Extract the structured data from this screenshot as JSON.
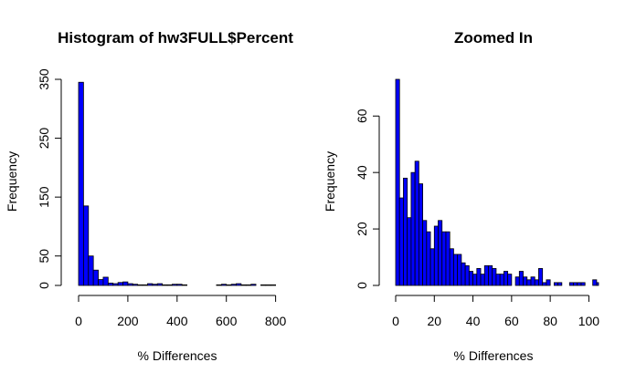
{
  "chart_data": [
    {
      "type": "bar",
      "title": "Histogram of hw3FULL$Percent",
      "xlabel": "% Differences",
      "ylabel": "Frequency",
      "xlim": [
        0,
        820
      ],
      "ylim": [
        0,
        350
      ],
      "xticks": [
        0,
        200,
        400,
        600,
        800
      ],
      "yticks": [
        0,
        50,
        150,
        250,
        350
      ],
      "bin_width": 20,
      "bin_start": 0,
      "values": [
        345,
        135,
        50,
        26,
        10,
        14,
        4,
        3,
        5,
        6,
        3,
        2,
        1,
        1,
        3,
        2,
        3,
        1,
        1,
        2,
        2,
        1,
        0,
        0,
        0,
        0,
        0,
        0,
        1,
        2,
        1,
        2,
        3,
        1,
        1,
        2,
        0,
        1,
        1,
        1
      ],
      "fill": "#0000ff"
    },
    {
      "type": "bar",
      "title": "Zoomed In",
      "xlabel": "% Differences",
      "ylabel": "Frequency",
      "xlim": [
        0,
        105
      ],
      "ylim": [
        0,
        73
      ],
      "xticks": [
        0,
        20,
        40,
        60,
        80,
        100
      ],
      "yticks": [
        0,
        20,
        40,
        60
      ],
      "bin_width": 2,
      "bin_start": 0,
      "values": [
        73,
        31,
        38,
        24,
        40,
        44,
        36,
        23,
        19,
        13,
        21,
        23,
        19,
        19,
        13,
        11,
        11,
        8,
        7,
        5,
        4,
        6,
        4,
        7,
        7,
        6,
        4,
        4,
        5,
        4,
        0,
        3,
        5,
        3,
        2,
        3,
        2,
        6,
        1,
        2,
        0,
        1,
        1,
        0,
        0,
        1,
        1,
        1,
        1,
        0,
        0,
        2,
        1
      ],
      "fill": "#0000ff"
    }
  ]
}
